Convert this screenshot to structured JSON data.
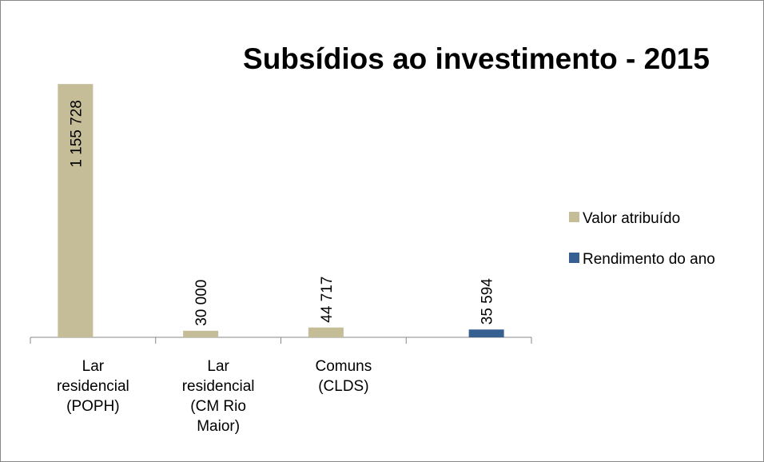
{
  "chart_data": {
    "type": "bar",
    "title": "Subsídios ao investimento - 2015",
    "categories": [
      "Lar residencial (POPH)",
      "Lar residencial (CM Rio Maior)",
      "Comuns (CLDS)",
      null
    ],
    "series": [
      {
        "name": "Valor atribuído",
        "color": "#c4bd97",
        "values": [
          1155728,
          30000,
          44717,
          null
        ],
        "value_labels": [
          "1 155 728",
          "30 000",
          "44 717",
          null
        ]
      },
      {
        "name": "Rendimento do ano",
        "color": "#376092",
        "values": [
          null,
          null,
          null,
          35594
        ],
        "value_labels": [
          null,
          null,
          null,
          "35 594"
        ]
      }
    ],
    "ylim": [
      0,
      1200000
    ],
    "legend": "right"
  }
}
